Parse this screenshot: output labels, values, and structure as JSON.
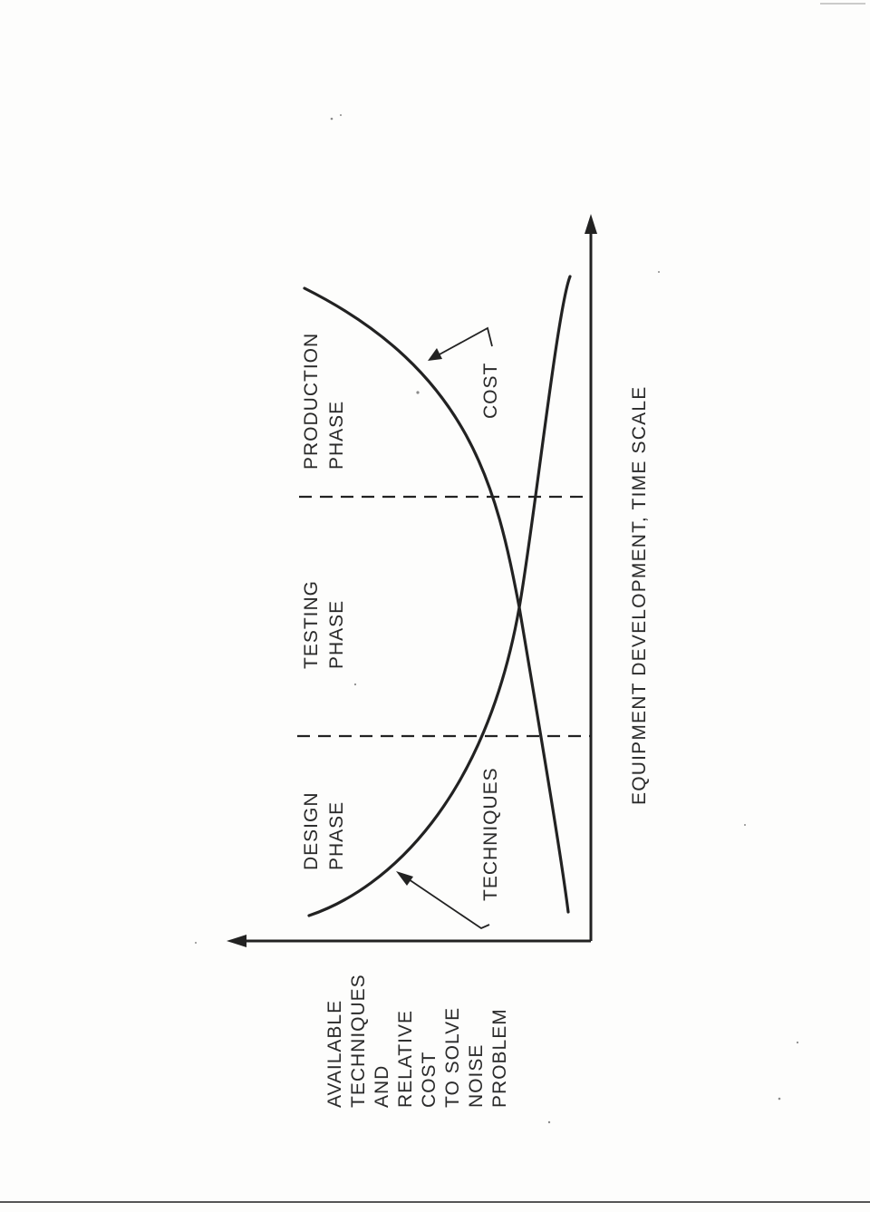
{
  "y_axis_label": [
    "AVAILABLE",
    "TECHNIQUES",
    "AND",
    "RELATIVE",
    "COST",
    "TO SOLVE",
    "NOISE",
    "PROBLEM"
  ],
  "x_axis_label": "EQUIPMENT DEVELOPMENT, TIME SCALE",
  "phases": {
    "design": [
      "DESIGN",
      "PHASE"
    ],
    "testing": [
      "TESTING",
      "PHASE"
    ],
    "production": [
      "PRODUCTION",
      "PHASE"
    ]
  },
  "curves": {
    "techniques": "TECHNIQUES",
    "cost": "COST"
  },
  "colors": {
    "ink": "#222222",
    "paper": "#fdfdfc"
  }
}
